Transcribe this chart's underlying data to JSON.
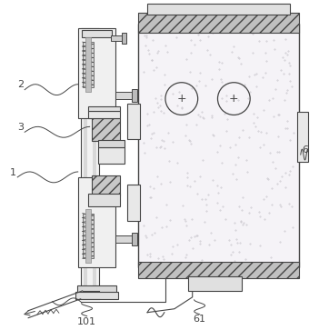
{
  "fig_width": 3.51,
  "fig_height": 3.63,
  "dpi": 100,
  "bg_color": "#ffffff",
  "line_color": "#444444",
  "fill_white": "#ffffff",
  "fill_light": "#f0f0f0",
  "fill_gray": "#cccccc",
  "fill_mid": "#e0e0e0",
  "fill_dark": "#aaaaaa",
  "fill_texture": "#f5f3f7"
}
